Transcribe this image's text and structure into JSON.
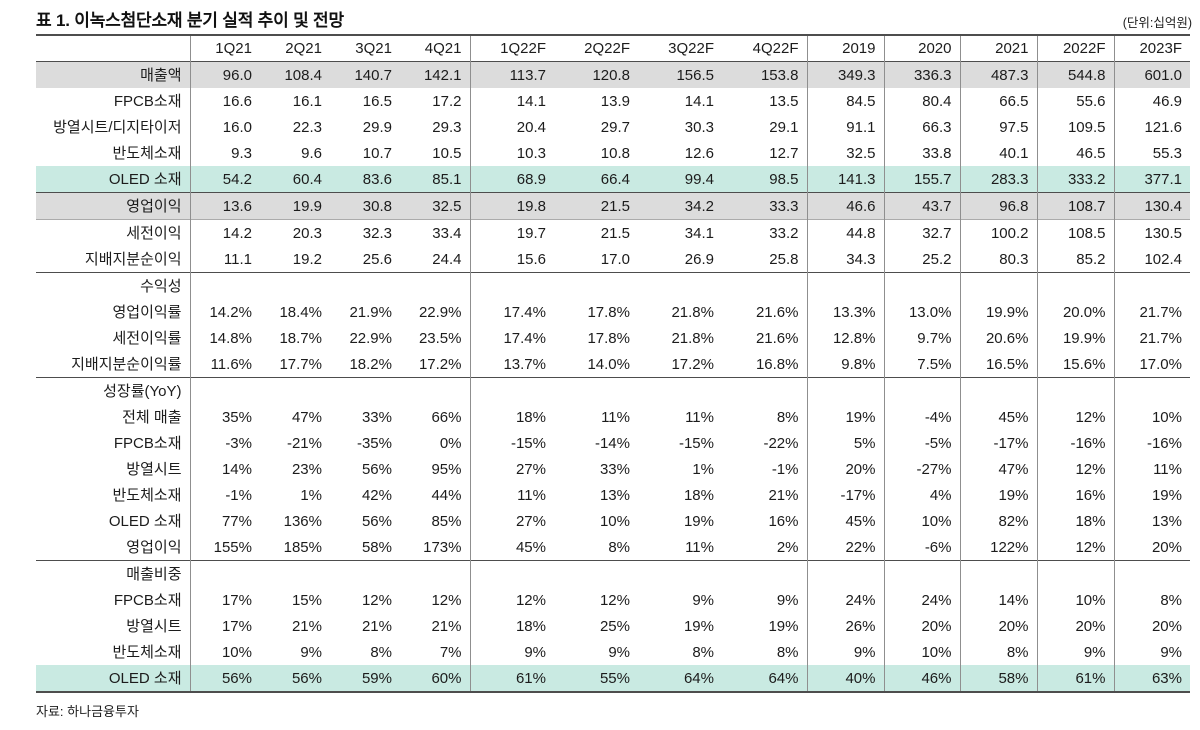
{
  "header": {
    "title": "표 1. 이녹스첨단소재 분기 실적 추이 및 전망",
    "unit": "(단위:십억원)"
  },
  "footer": {
    "source": "자료: 하나금융투자"
  },
  "colors": {
    "highlight_cyan": "#c9eae2",
    "highlight_gray": "#dcdcdc",
    "rule_dark": "#4d4d4d",
    "rule_mid": "#8f8f8f"
  },
  "table": {
    "columns": [
      "1Q21",
      "2Q21",
      "3Q21",
      "4Q21",
      "1Q22F",
      "2Q22F",
      "3Q22F",
      "4Q22F",
      "2019",
      "2020",
      "2021",
      "2022F",
      "2023F"
    ],
    "rows": [
      {
        "label": "매출액",
        "indent": 0,
        "bold": true,
        "bg": "gray",
        "rule": null,
        "values": [
          "96.0",
          "108.4",
          "140.7",
          "142.1",
          "113.7",
          "120.8",
          "156.5",
          "153.8",
          "349.3",
          "336.3",
          "487.3",
          "544.8",
          "601.0"
        ]
      },
      {
        "label": "FPCB소재",
        "indent": 1,
        "bold": false,
        "bg": null,
        "rule": null,
        "values": [
          "16.6",
          "16.1",
          "16.5",
          "17.2",
          "14.1",
          "13.9",
          "14.1",
          "13.5",
          "84.5",
          "80.4",
          "66.5",
          "55.6",
          "46.9"
        ]
      },
      {
        "label": "방열시트/디지타이저",
        "indent": 1,
        "bold": false,
        "bg": null,
        "rule": null,
        "values": [
          "16.0",
          "22.3",
          "29.9",
          "29.3",
          "20.4",
          "29.7",
          "30.3",
          "29.1",
          "91.1",
          "66.3",
          "97.5",
          "109.5",
          "121.6"
        ]
      },
      {
        "label": "반도체소재",
        "indent": 1,
        "bold": false,
        "bg": null,
        "rule": null,
        "values": [
          "9.3",
          "9.6",
          "10.7",
          "10.5",
          "10.3",
          "10.8",
          "12.6",
          "12.7",
          "32.5",
          "33.8",
          "40.1",
          "46.5",
          "55.3"
        ]
      },
      {
        "label": "OLED 소재",
        "indent": 1,
        "bold": true,
        "bg": "cyan",
        "rule": "dark",
        "values": [
          "54.2",
          "60.4",
          "83.6",
          "85.1",
          "68.9",
          "66.4",
          "99.4",
          "98.5",
          "141.3",
          "155.7",
          "283.3",
          "333.2",
          "377.1"
        ]
      },
      {
        "label": "영업이익",
        "indent": 0,
        "bold": true,
        "bg": "gray",
        "rule": "light",
        "values": [
          "13.6",
          "19.9",
          "30.8",
          "32.5",
          "19.8",
          "21.5",
          "34.2",
          "33.3",
          "46.6",
          "43.7",
          "96.8",
          "108.7",
          "130.4"
        ]
      },
      {
        "label": "세전이익",
        "indent": 0,
        "bold": false,
        "bg": null,
        "rule": null,
        "values": [
          "14.2",
          "20.3",
          "32.3",
          "33.4",
          "19.7",
          "21.5",
          "34.1",
          "33.2",
          "44.8",
          "32.7",
          "100.2",
          "108.5",
          "130.5"
        ]
      },
      {
        "label": "지배지분순이익",
        "indent": 0,
        "bold": false,
        "bg": null,
        "rule": "dark",
        "values": [
          "11.1",
          "19.2",
          "25.6",
          "24.4",
          "15.6",
          "17.0",
          "26.9",
          "25.8",
          "34.3",
          "25.2",
          "80.3",
          "85.2",
          "102.4"
        ]
      },
      {
        "label": "수익성",
        "indent": 0,
        "bold": true,
        "bg": null,
        "rule": null,
        "values": []
      },
      {
        "label": "영업이익률",
        "indent": 1,
        "bold": false,
        "bg": null,
        "rule": null,
        "values": [
          "14.2%",
          "18.4%",
          "21.9%",
          "22.9%",
          "17.4%",
          "17.8%",
          "21.8%",
          "21.6%",
          "13.3%",
          "13.0%",
          "19.9%",
          "20.0%",
          "21.7%"
        ]
      },
      {
        "label": "세전이익률",
        "indent": 1,
        "bold": false,
        "bg": null,
        "rule": null,
        "values": [
          "14.8%",
          "18.7%",
          "22.9%",
          "23.5%",
          "17.4%",
          "17.8%",
          "21.8%",
          "21.6%",
          "12.8%",
          "9.7%",
          "20.6%",
          "19.9%",
          "21.7%"
        ]
      },
      {
        "label": "지배지분순이익률",
        "indent": 1,
        "bold": false,
        "bg": null,
        "rule": "dark",
        "values": [
          "11.6%",
          "17.7%",
          "18.2%",
          "17.2%",
          "13.7%",
          "14.0%",
          "17.2%",
          "16.8%",
          "9.8%",
          "7.5%",
          "16.5%",
          "15.6%",
          "17.0%"
        ]
      },
      {
        "label": "성장률(YoY)",
        "indent": 0,
        "bold": true,
        "bg": null,
        "rule": null,
        "values": []
      },
      {
        "label": "전체 매출",
        "indent": 0,
        "bold": false,
        "bg": null,
        "rule": null,
        "values": [
          "35%",
          "47%",
          "33%",
          "66%",
          "18%",
          "11%",
          "11%",
          "8%",
          "19%",
          "-4%",
          "45%",
          "12%",
          "10%"
        ]
      },
      {
        "label": "FPCB소재",
        "indent": 1,
        "bold": false,
        "bg": null,
        "rule": null,
        "values": [
          "-3%",
          "-21%",
          "-35%",
          "0%",
          "-15%",
          "-14%",
          "-15%",
          "-22%",
          "5%",
          "-5%",
          "-17%",
          "-16%",
          "-16%"
        ]
      },
      {
        "label": "방열시트",
        "indent": 1,
        "bold": false,
        "bg": null,
        "rule": null,
        "values": [
          "14%",
          "23%",
          "56%",
          "95%",
          "27%",
          "33%",
          "1%",
          "-1%",
          "20%",
          "-27%",
          "47%",
          "12%",
          "11%"
        ]
      },
      {
        "label": "반도체소재",
        "indent": 1,
        "bold": false,
        "bg": null,
        "rule": null,
        "values": [
          "-1%",
          "1%",
          "42%",
          "44%",
          "11%",
          "13%",
          "18%",
          "21%",
          "-17%",
          "4%",
          "19%",
          "16%",
          "19%"
        ]
      },
      {
        "label": "OLED 소재",
        "indent": 1,
        "bold": true,
        "bg": null,
        "rule": null,
        "values": [
          "77%",
          "136%",
          "56%",
          "85%",
          "27%",
          "10%",
          "19%",
          "16%",
          "45%",
          "10%",
          "82%",
          "18%",
          "13%"
        ]
      },
      {
        "label": "영업이익",
        "indent": 0,
        "bold": false,
        "bg": null,
        "rule": "dark",
        "values": [
          "155%",
          "185%",
          "58%",
          "173%",
          "45%",
          "8%",
          "11%",
          "2%",
          "22%",
          "-6%",
          "122%",
          "12%",
          "20%"
        ]
      },
      {
        "label": "매출비중",
        "indent": 0,
        "bold": true,
        "bg": null,
        "rule": null,
        "values": []
      },
      {
        "label": "FPCB소재",
        "indent": 1,
        "bold": false,
        "bg": null,
        "rule": null,
        "values": [
          "17%",
          "15%",
          "12%",
          "12%",
          "12%",
          "12%",
          "9%",
          "9%",
          "24%",
          "24%",
          "14%",
          "10%",
          "8%"
        ]
      },
      {
        "label": "방열시트",
        "indent": 1,
        "bold": false,
        "bg": null,
        "rule": null,
        "values": [
          "17%",
          "21%",
          "21%",
          "21%",
          "18%",
          "25%",
          "19%",
          "19%",
          "26%",
          "20%",
          "20%",
          "20%",
          "20%"
        ]
      },
      {
        "label": "반도체소재",
        "indent": 1,
        "bold": false,
        "bg": null,
        "rule": null,
        "values": [
          "10%",
          "9%",
          "8%",
          "7%",
          "9%",
          "9%",
          "8%",
          "8%",
          "9%",
          "10%",
          "8%",
          "9%",
          "9%"
        ]
      },
      {
        "label": "OLED 소재",
        "indent": 1,
        "bold": true,
        "bg": "cyan",
        "rule": null,
        "values": [
          "56%",
          "56%",
          "59%",
          "60%",
          "61%",
          "55%",
          "64%",
          "64%",
          "40%",
          "46%",
          "58%",
          "61%",
          "63%"
        ]
      }
    ]
  }
}
